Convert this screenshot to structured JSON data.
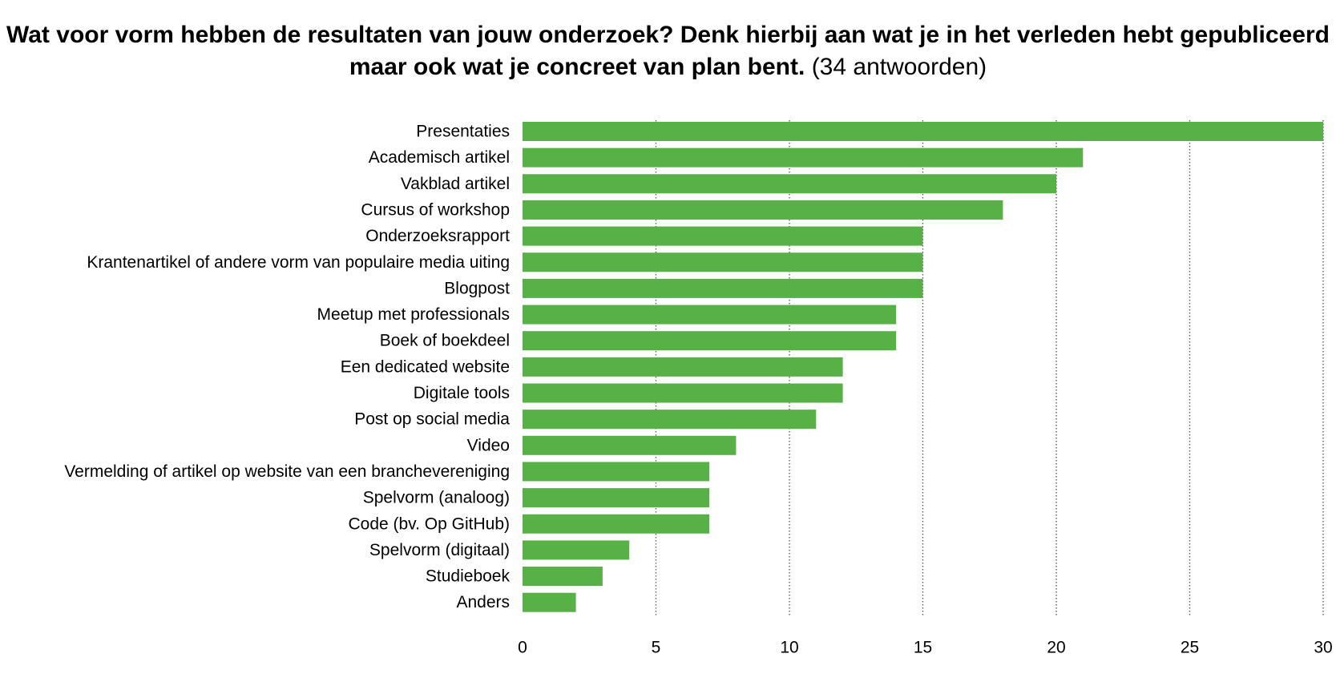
{
  "title": {
    "main": "Wat voor vorm hebben de resultaten van jouw onderzoek? Denk hierbij aan wat je in het verleden hebt gepubliceerd maar ook wat je concreet van plan bent.",
    "response_count": "(34 antwoorden)"
  },
  "chart_data": {
    "type": "bar",
    "orientation": "horizontal",
    "title": "Wat voor vorm hebben de resultaten van jouw onderzoek? Denk hierbij aan wat je in het verleden hebt gepubliceerd maar ook wat je concreet van plan bent.",
    "subtitle": "(34 antwoorden)",
    "categories": [
      "Presentaties",
      "Academisch artikel",
      "Vakblad artikel",
      "Cursus of workshop",
      "Onderzoeksrapport",
      "Krantenartikel of andere vorm van populaire media uiting",
      "Blogpost",
      "Meetup met professionals",
      "Boek of boekdeel",
      "Een dedicated website",
      "Digitale tools",
      "Post op social media",
      "Video",
      "Vermelding of artikel op website van een branchevereniging",
      "Spelvorm (analoog)",
      "Code (bv. Op GitHub)",
      "Spelvorm (digitaal)",
      "Studieboek",
      "Anders"
    ],
    "values": [
      30,
      21,
      20,
      18,
      15,
      15,
      15,
      14,
      14,
      12,
      12,
      11,
      8,
      7,
      7,
      7,
      4,
      3,
      2
    ],
    "xlim": [
      0,
      30
    ],
    "xticks": [
      0,
      5,
      10,
      15,
      20,
      25,
      30
    ],
    "grid": "vertical dotted",
    "legend": "none",
    "colors": {
      "bar": "#57b146",
      "grid": "#555555"
    }
  }
}
